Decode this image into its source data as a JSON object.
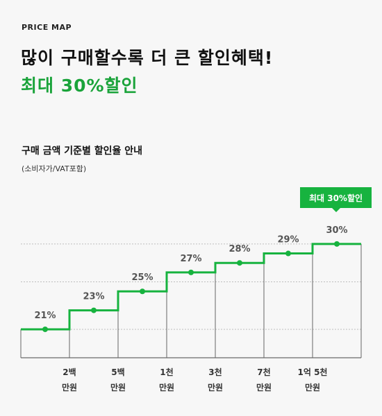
{
  "header": {
    "eyebrow": "PRICE MAP",
    "headline": "많이 구매할수록 더 큰 할인혜택!",
    "headline_accent": "최대 30%할인"
  },
  "section": {
    "title": "구매 금액 기준별 할인율 안내",
    "note": "(소비자가/VAT포함)"
  },
  "badge": {
    "label": "최대 30%할인"
  },
  "colors": {
    "accent": "#17b33f",
    "text_dark": "#111111",
    "background": "#f7f7f7"
  },
  "chart_data": {
    "type": "line",
    "step": true,
    "categories": [
      "",
      "2백 만원",
      "5백 만원",
      "1천 만원",
      "3천 만원",
      "7천 만원",
      "1억 5천 만원"
    ],
    "tick_lines": [
      [
        "2백",
        "만원"
      ],
      [
        "5백",
        "만원"
      ],
      [
        "1천",
        "만원"
      ],
      [
        "3천",
        "만원"
      ],
      [
        "7천",
        "만원"
      ],
      [
        "1억 5천",
        "만원"
      ]
    ],
    "values": [
      21,
      23,
      25,
      27,
      28,
      29,
      30
    ],
    "value_labels": [
      "21%",
      "23%",
      "25%",
      "27%",
      "28%",
      "29%",
      "30%"
    ],
    "ylim": [
      18,
      30.5
    ],
    "grid_values": [
      21,
      26,
      30
    ],
    "grid": true
  }
}
